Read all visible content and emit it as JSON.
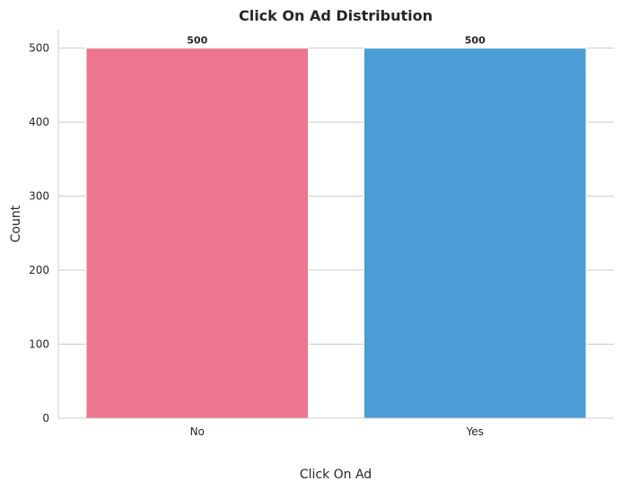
{
  "chart_data": {
    "type": "bar",
    "title": "Click On Ad Distribution",
    "xlabel": "Click On Ad",
    "ylabel": "Count",
    "categories": [
      "No",
      "Yes"
    ],
    "values": [
      500,
      500
    ],
    "data_labels": [
      "500",
      "500"
    ],
    "bar_colors": [
      "#ec7690",
      "#4c9dd5"
    ],
    "ylim": [
      0,
      525
    ],
    "yticks": [
      0,
      100,
      200,
      300,
      400,
      500
    ],
    "grid": "horizontal",
    "legend": "none"
  }
}
